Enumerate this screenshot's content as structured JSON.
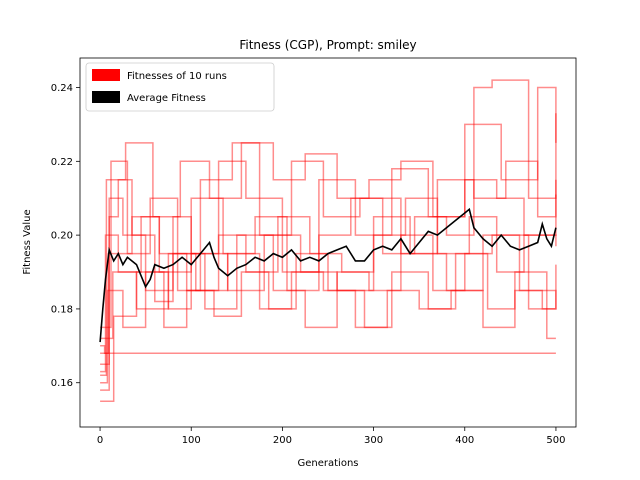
{
  "chart_data": {
    "type": "line",
    "title": "Fitness (CGP), Prompt: smiley",
    "xlabel": "Generations",
    "ylabel": "Fitness Value",
    "xlim": [
      -22,
      522
    ],
    "ylim": [
      0.148,
      0.248
    ],
    "xticks": [
      0,
      100,
      200,
      300,
      400,
      500
    ],
    "yticks": [
      0.16,
      0.18,
      0.2,
      0.22,
      0.24
    ],
    "ytick_labels": [
      "0.16",
      "0.18",
      "0.20",
      "0.22",
      "0.24"
    ],
    "grid": false,
    "legend_position": "top-left",
    "legend": [
      {
        "label": "Fitnesses of 10 runs",
        "color": "#ff0000"
      },
      {
        "label": "Average Fitness",
        "color": "#000000"
      }
    ],
    "series": [
      {
        "name": "Average Fitness",
        "color": "#000000",
        "x": [
          0,
          3,
          6,
          10,
          15,
          20,
          25,
          30,
          40,
          50,
          55,
          60,
          70,
          80,
          90,
          100,
          110,
          120,
          125,
          130,
          140,
          150,
          160,
          170,
          180,
          190,
          200,
          210,
          220,
          230,
          240,
          250,
          260,
          270,
          280,
          290,
          300,
          310,
          320,
          330,
          340,
          350,
          360,
          370,
          380,
          390,
          400,
          405,
          410,
          420,
          430,
          440,
          450,
          460,
          470,
          480,
          485,
          490,
          495,
          500
        ],
        "y": [
          0.171,
          0.18,
          0.188,
          0.196,
          0.193,
          0.195,
          0.192,
          0.194,
          0.192,
          0.186,
          0.188,
          0.192,
          0.191,
          0.192,
          0.194,
          0.192,
          0.195,
          0.198,
          0.194,
          0.191,
          0.189,
          0.191,
          0.192,
          0.194,
          0.193,
          0.195,
          0.194,
          0.196,
          0.193,
          0.194,
          0.193,
          0.195,
          0.196,
          0.197,
          0.193,
          0.193,
          0.196,
          0.197,
          0.196,
          0.199,
          0.195,
          0.198,
          0.201,
          0.2,
          0.202,
          0.204,
          0.206,
          0.207,
          0.202,
          0.199,
          0.197,
          0.2,
          0.197,
          0.196,
          0.197,
          0.198,
          0.203,
          0.199,
          0.197,
          0.202
        ]
      }
    ],
    "runs": [
      {
        "name": "run-1",
        "x": [
          0,
          10,
          20,
          35,
          60,
          80,
          100,
          130,
          160,
          200,
          240,
          280,
          320,
          360,
          400,
          440,
          480,
          500
        ],
        "y": [
          0.165,
          0.205,
          0.215,
          0.2,
          0.182,
          0.205,
          0.195,
          0.22,
          0.21,
          0.19,
          0.215,
          0.2,
          0.218,
          0.205,
          0.23,
          0.215,
          0.24,
          0.225
        ]
      },
      {
        "name": "run-2",
        "x": [
          0,
          8,
          25,
          50,
          75,
          100,
          140,
          180,
          220,
          260,
          300,
          340,
          380,
          420,
          460,
          500
        ],
        "y": [
          0.16,
          0.185,
          0.175,
          0.19,
          0.18,
          0.195,
          0.185,
          0.2,
          0.19,
          0.185,
          0.205,
          0.195,
          0.185,
          0.2,
          0.185,
          0.183
        ]
      },
      {
        "name": "run-3",
        "x": [
          0,
          5,
          30,
          60,
          90,
          120,
          150,
          200,
          250,
          300,
          350,
          400,
          450,
          500
        ],
        "y": [
          0.17,
          0.168,
          0.168,
          0.168,
          0.168,
          0.168,
          0.168,
          0.168,
          0.168,
          0.168,
          0.168,
          0.168,
          0.168,
          0.168
        ]
      },
      {
        "name": "run-4",
        "x": [
          0,
          12,
          30,
          55,
          85,
          110,
          145,
          175,
          210,
          245,
          285,
          330,
          370,
          410,
          445,
          480,
          500
        ],
        "y": [
          0.175,
          0.22,
          0.195,
          0.21,
          0.185,
          0.215,
          0.225,
          0.2,
          0.22,
          0.205,
          0.21,
          0.195,
          0.215,
          0.21,
          0.22,
          0.205,
          0.211
        ]
      },
      {
        "name": "run-5",
        "x": [
          0,
          15,
          40,
          70,
          95,
          125,
          155,
          185,
          215,
          250,
          290,
          320,
          360,
          390,
          425,
          455,
          490,
          500
        ],
        "y": [
          0.155,
          0.178,
          0.19,
          0.175,
          0.185,
          0.178,
          0.19,
          0.18,
          0.195,
          0.185,
          0.175,
          0.19,
          0.18,
          0.195,
          0.18,
          0.19,
          0.172,
          0.172
        ]
      },
      {
        "name": "run-6",
        "x": [
          0,
          6,
          20,
          45,
          65,
          95,
          130,
          160,
          195,
          230,
          265,
          300,
          335,
          370,
          405,
          435,
          465,
          500
        ],
        "y": [
          0.163,
          0.2,
          0.19,
          0.205,
          0.195,
          0.185,
          0.2,
          0.19,
          0.205,
          0.195,
          0.19,
          0.2,
          0.21,
          0.195,
          0.205,
          0.19,
          0.2,
          0.197
        ]
      },
      {
        "name": "run-7",
        "x": [
          0,
          10,
          25,
          50,
          80,
          115,
          150,
          190,
          225,
          260,
          295,
          330,
          365,
          400,
          430,
          470,
          500
        ],
        "y": [
          0.158,
          0.21,
          0.2,
          0.185,
          0.195,
          0.18,
          0.2,
          0.185,
          0.175,
          0.19,
          0.185,
          0.2,
          0.185,
          0.195,
          0.2,
          0.18,
          0.192
        ]
      },
      {
        "name": "run-8",
        "x": [
          0,
          9,
          35,
          65,
          100,
          135,
          170,
          205,
          240,
          275,
          310,
          345,
          380,
          410,
          430,
          470,
          500
        ],
        "y": [
          0.168,
          0.195,
          0.205,
          0.19,
          0.21,
          0.195,
          0.205,
          0.185,
          0.2,
          0.21,
          0.195,
          0.205,
          0.2,
          0.24,
          0.242,
          0.21,
          0.233
        ]
      },
      {
        "name": "run-9",
        "x": [
          0,
          14,
          40,
          75,
          105,
          140,
          175,
          210,
          245,
          280,
          315,
          350,
          385,
          420,
          455,
          485,
          500
        ],
        "y": [
          0.172,
          0.19,
          0.18,
          0.195,
          0.185,
          0.195,
          0.18,
          0.19,
          0.185,
          0.175,
          0.185,
          0.18,
          0.185,
          0.175,
          0.185,
          0.18,
          0.183
        ]
      },
      {
        "name": "run-10",
        "x": [
          0,
          7,
          28,
          58,
          88,
          120,
          155,
          190,
          225,
          260,
          295,
          330,
          365,
          400,
          435,
          465,
          500
        ],
        "y": [
          0.162,
          0.215,
          0.225,
          0.205,
          0.22,
          0.21,
          0.225,
          0.215,
          0.222,
          0.21,
          0.215,
          0.22,
          0.205,
          0.215,
          0.21,
          0.2,
          0.215
        ]
      }
    ]
  }
}
